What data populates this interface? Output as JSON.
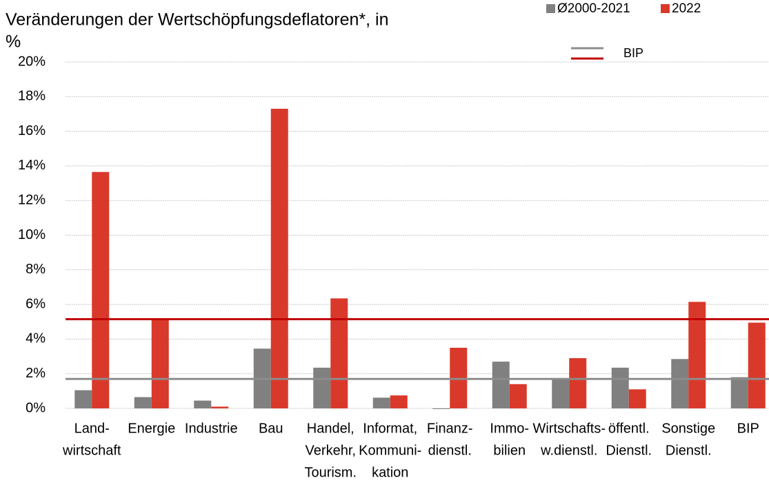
{
  "chart_data": {
    "type": "bar",
    "title": [
      "Veränderungen der Wertschöpfungsdeflatoren*, in",
      "%"
    ],
    "categories": [
      [
        "Land-",
        "wirtschaft"
      ],
      [
        "Energie"
      ],
      [
        "Industrie"
      ],
      [
        "Bau"
      ],
      [
        "Handel,",
        "Verkehr,",
        "Tourism."
      ],
      [
        "Informat,",
        "Kommuni-",
        "kation"
      ],
      [
        "Finanz-",
        "dienstl."
      ],
      [
        "Immo-",
        "bilien"
      ],
      [
        "Wirtschafts-",
        "w.dienstl."
      ],
      [
        "öffentl.",
        "Dienstl."
      ],
      [
        "Sonstige",
        "Dienstl."
      ],
      [
        "BIP"
      ]
    ],
    "series": [
      {
        "name": "Ø2000-2021",
        "color": "#808080",
        "values": [
          1.05,
          0.65,
          0.45,
          3.45,
          2.35,
          0.62,
          -0.03,
          2.7,
          1.75,
          2.35,
          2.85,
          1.8
        ]
      },
      {
        "name": "2022",
        "color": "#d9392b",
        "values": [
          13.65,
          5.15,
          0.1,
          17.3,
          6.35,
          0.75,
          3.5,
          1.4,
          2.9,
          1.1,
          6.15,
          4.95
        ]
      }
    ],
    "reference_legend": "BIP",
    "reference_lines": [
      {
        "value": 1.7,
        "color": "#8c8c8c"
      },
      {
        "value": 5.15,
        "color": "#c00000"
      }
    ],
    "ylim": [
      0,
      20
    ],
    "yticks": [
      {
        "value": 0,
        "label": "0%"
      },
      {
        "value": 2,
        "label": "2%"
      },
      {
        "value": 4,
        "label": "4%"
      },
      {
        "value": 6,
        "label": "6%"
      },
      {
        "value": 8,
        "label": "8%"
      },
      {
        "value": 10,
        "label": "10%"
      },
      {
        "value": 12,
        "label": "12%"
      },
      {
        "value": 14,
        "label": "14%"
      },
      {
        "value": 16,
        "label": "16%"
      },
      {
        "value": 18,
        "label": "18%"
      },
      {
        "value": 20,
        "label": "20%"
      }
    ],
    "grid": true
  }
}
